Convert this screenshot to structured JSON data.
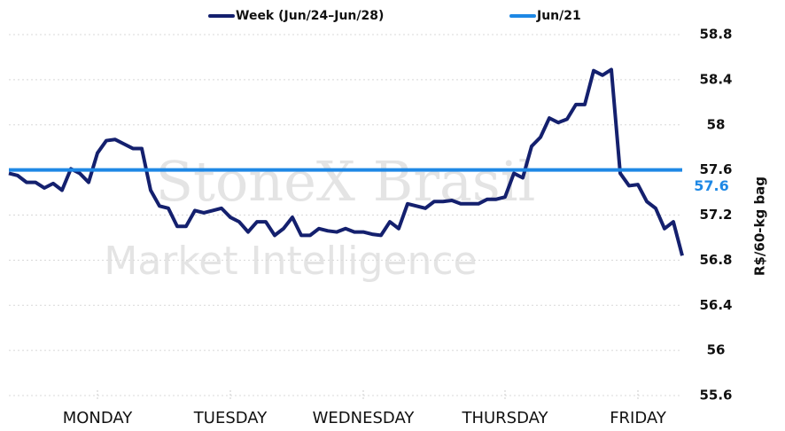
{
  "chart_data": {
    "type": "line",
    "watermark": {
      "brand": "StoneX Brasil",
      "tagline": "Market Intelligence"
    },
    "y_label": "R$/60-kg bag",
    "categories": [
      null,
      null,
      null,
      null,
      null,
      null,
      null,
      null,
      null,
      null,
      "MONDAY",
      null,
      null,
      null,
      null,
      null,
      null,
      null,
      null,
      null,
      null,
      null,
      null,
      null,
      null,
      "TUESDAY",
      null,
      null,
      null,
      null,
      null,
      null,
      null,
      null,
      null,
      null,
      null,
      null,
      null,
      null,
      "WEDNESDAY",
      null,
      null,
      null,
      null,
      null,
      null,
      null,
      null,
      null,
      null,
      null,
      null,
      null,
      null,
      null,
      "THURSDAY",
      null,
      null,
      null,
      null,
      null,
      null,
      null,
      null,
      null,
      null,
      null,
      null,
      null,
      null,
      "FRIDAY",
      null,
      null,
      null,
      null,
      null
    ],
    "series": [
      {
        "name": "Week (Jun/24–Jun/28)",
        "color": "#14206e",
        "values": [
          57.57,
          57.55,
          57.49,
          57.49,
          57.44,
          57.48,
          57.42,
          57.61,
          57.57,
          57.49,
          57.75,
          57.86,
          57.87,
          57.83,
          57.79,
          57.79,
          57.42,
          57.28,
          57.26,
          57.1,
          57.1,
          57.24,
          57.22,
          57.24,
          57.26,
          57.18,
          57.14,
          57.05,
          57.14,
          57.14,
          57.02,
          57.08,
          57.18,
          57.02,
          57.02,
          57.08,
          57.06,
          57.05,
          57.08,
          57.05,
          57.05,
          57.03,
          57.02,
          57.14,
          57.08,
          57.3,
          57.28,
          57.26,
          57.32,
          57.32,
          57.33,
          57.3,
          57.3,
          57.3,
          57.34,
          57.34,
          57.36,
          57.57,
          57.53,
          57.81,
          57.89,
          58.06,
          58.02,
          58.05,
          58.18,
          58.18,
          58.48,
          58.44,
          58.49,
          57.57,
          57.46,
          57.47,
          57.32,
          57.26,
          57.08,
          57.14,
          56.84
        ]
      },
      {
        "name": "Jun/21",
        "color": "#1e88e5",
        "value": 57.6
      }
    ],
    "ylim": [
      55.6,
      58.8
    ],
    "yticks": [
      55.6,
      56.0,
      56.4,
      56.8,
      57.2,
      57.6,
      58.0,
      58.4,
      58.8
    ],
    "grid": true
  }
}
